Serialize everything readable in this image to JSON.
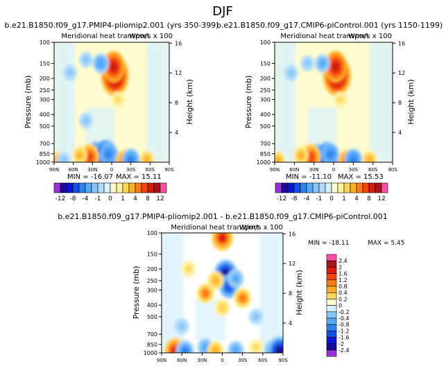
{
  "page_title": "DJF",
  "chart_data": [
    {
      "type": "heatmap",
      "id": "top-left",
      "title": "b.e21.B1850.f09_g17.PMIP4-pliomip2.001 (yrs 350-399)",
      "subtitle": "Meridional heat transport",
      "units": "W/m/s x 100",
      "xlabel": "",
      "ylabel": "Pressure (mb)",
      "y2label": "Height (km)",
      "xticks": [
        "90N",
        "60N",
        "30N",
        "0",
        "30S",
        "60S",
        "90S"
      ],
      "yticks": [
        100,
        150,
        200,
        250,
        300,
        400,
        500,
        700,
        850,
        1000
      ],
      "y2ticks": [
        16,
        12,
        8,
        4
      ],
      "min_label": "MIN = -16.07",
      "max_label": "MAX = 15.11",
      "features": [
        {
          "lat": -5,
          "p": 190,
          "value": 12
        },
        {
          "lat": -3,
          "p": 160,
          "value": 8
        },
        {
          "lat": 17,
          "p": 150,
          "value": -3
        },
        {
          "lat": 40,
          "p": 140,
          "value": -1
        },
        {
          "lat": 65,
          "p": 180,
          "value": -1
        },
        {
          "lat": -10,
          "p": 300,
          "value": 1
        },
        {
          "lat": 40,
          "p": 450,
          "value": -1
        },
        {
          "lat": 25,
          "p": 960,
          "value": -10
        },
        {
          "lat": 10,
          "p": 960,
          "value": -12
        },
        {
          "lat": 5,
          "p": 860,
          "value": -4
        },
        {
          "lat": 35,
          "p": 910,
          "value": 6
        },
        {
          "lat": 50,
          "p": 880,
          "value": 2
        },
        {
          "lat": -20,
          "p": 980,
          "value": 4
        },
        {
          "lat": -30,
          "p": 960,
          "value": -4
        },
        {
          "lat": -55,
          "p": 950,
          "value": 2
        },
        {
          "lat": 85,
          "p": 960,
          "value": 2
        },
        {
          "lat": 75,
          "p": 960,
          "value": -1
        }
      ]
    },
    {
      "type": "heatmap",
      "id": "top-right",
      "title": "b.e21.B1850.f09_g17.CMIP6-piControl.001 (yrs 1150-1199)",
      "subtitle": "Meridional heat transport",
      "units": "W/m/s x 100",
      "xlabel": "",
      "ylabel": "Pressure (mb)",
      "y2label": "Height (km)",
      "xticks": [
        "90N",
        "60N",
        "30N",
        "0",
        "30S",
        "60S",
        "90S"
      ],
      "yticks": [
        100,
        150,
        200,
        250,
        300,
        400,
        500,
        700,
        850,
        1000
      ],
      "y2ticks": [
        16,
        12,
        8,
        4
      ],
      "min_label": "MIN = -11.10",
      "max_label": "MAX = 15.53",
      "features": [
        {
          "lat": -5,
          "p": 190,
          "value": 12
        },
        {
          "lat": -3,
          "p": 160,
          "value": 8
        },
        {
          "lat": 17,
          "p": 150,
          "value": -2
        },
        {
          "lat": 40,
          "p": 150,
          "value": -1
        },
        {
          "lat": 65,
          "p": 180,
          "value": -1
        },
        {
          "lat": -10,
          "p": 300,
          "value": 1
        },
        {
          "lat": 25,
          "p": 960,
          "value": -8
        },
        {
          "lat": 10,
          "p": 960,
          "value": -10
        },
        {
          "lat": 5,
          "p": 860,
          "value": -4
        },
        {
          "lat": 35,
          "p": 910,
          "value": 6
        },
        {
          "lat": 50,
          "p": 880,
          "value": 2
        },
        {
          "lat": -20,
          "p": 980,
          "value": 4
        },
        {
          "lat": -30,
          "p": 960,
          "value": -4
        },
        {
          "lat": -55,
          "p": 950,
          "value": 2
        },
        {
          "lat": 85,
          "p": 960,
          "value": 2
        }
      ]
    },
    {
      "type": "heatmap",
      "id": "difference",
      "title": "b.e21.B1850.f09_g17.PMIP4-pliomip2.001 - b.e21.B1850.f09_g17.CMIP6-piControl.001",
      "subtitle": "Meridional heat transport",
      "units": "W/m/s x 100",
      "xlabel": "",
      "ylabel": "Pressure (mb)",
      "y2label": "Height (km)",
      "xticks": [
        "90N",
        "60N",
        "30N",
        "0",
        "30S",
        "60S",
        "90S"
      ],
      "yticks": [
        100,
        150,
        200,
        250,
        300,
        400,
        500,
        700,
        850,
        1000
      ],
      "y2ticks": [
        16,
        12,
        8,
        4
      ],
      "min_label": "MIN = -18.11",
      "max_label": "MAX = 5.45",
      "features": [
        {
          "lat": 0,
          "p": 110,
          "value": 2
        },
        {
          "lat": -5,
          "p": 220,
          "value": -2.4
        },
        {
          "lat": -10,
          "p": 280,
          "value": -1.6
        },
        {
          "lat": 10,
          "p": 250,
          "value": 0.8
        },
        {
          "lat": 25,
          "p": 320,
          "value": 1.2
        },
        {
          "lat": -30,
          "p": 350,
          "value": 1.2
        },
        {
          "lat": -20,
          "p": 240,
          "value": -0.8
        },
        {
          "lat": 50,
          "p": 200,
          "value": 0.4
        },
        {
          "lat": 0,
          "p": 420,
          "value": 0.6
        },
        {
          "lat": -50,
          "p": 500,
          "value": -0.4
        },
        {
          "lat": 60,
          "p": 600,
          "value": -0.4
        },
        {
          "lat": 70,
          "p": 960,
          "value": 2
        },
        {
          "lat": 55,
          "p": 960,
          "value": -1.2
        },
        {
          "lat": 25,
          "p": 900,
          "value": -0.8
        },
        {
          "lat": 10,
          "p": 950,
          "value": 0.8
        },
        {
          "lat": -20,
          "p": 950,
          "value": -0.8
        },
        {
          "lat": -50,
          "p": 900,
          "value": 0.4
        },
        {
          "lat": -75,
          "p": 950,
          "value": -1.2
        },
        {
          "lat": -85,
          "p": 960,
          "value": -2.4
        }
      ]
    }
  ],
  "colorbars": {
    "top_labels": [
      "-12",
      "-8",
      "-4",
      "-1",
      "0",
      "1",
      "4",
      "8",
      "12"
    ],
    "top_levels": [
      -16,
      -12,
      -10,
      -8,
      -6,
      -4,
      -2,
      -1,
      -0.5,
      0,
      0.5,
      1,
      2,
      4,
      6,
      8,
      10,
      12,
      16
    ],
    "diff_labels": [
      "2.4",
      "2",
      "1.6",
      "1.2",
      "0.8",
      "0.4",
      "0.2",
      "0",
      "-0.2",
      "-0.4",
      "-0.8",
      "-1.2",
      "-1.6",
      "-2",
      "-2.4"
    ]
  },
  "palette": {
    "neg": [
      "#9b2fdc",
      "#1b0a9b",
      "#0c14d6",
      "#1250e6",
      "#2d84f0",
      "#55a8f7",
      "#86c4f9",
      "#b0dcfb",
      "#d9f1fd"
    ],
    "pos": [
      "#fdfccf",
      "#fff2a0",
      "#ffd85a",
      "#ffb029",
      "#ff7a12",
      "#f44409",
      "#d61a0b",
      "#a8141e",
      "#ff4fa5"
    ],
    "neutral": "#ffffff"
  }
}
